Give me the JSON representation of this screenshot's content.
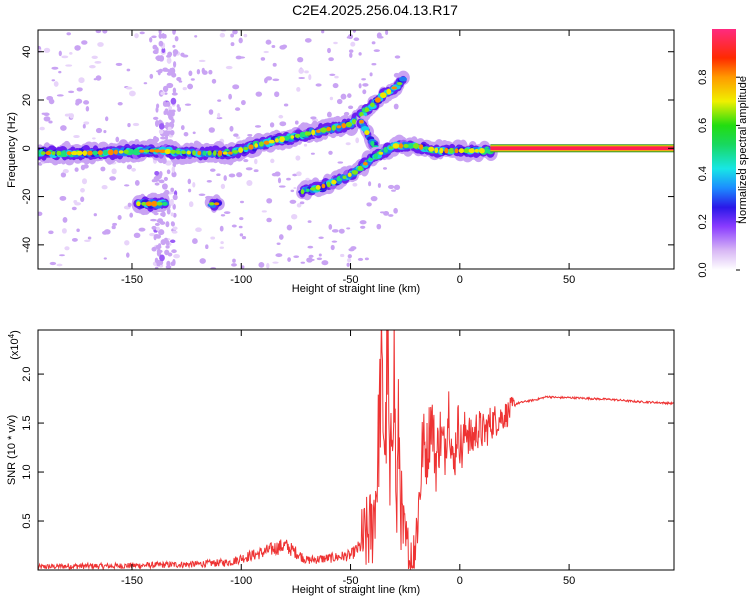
{
  "title": "C2E4.2025.256.04.13.R17",
  "chart_data": [
    {
      "type": "heatmap",
      "xlabel": "Height of straight line (km)",
      "ylabel": "Frequency (Hz)",
      "xlim": [
        -193,
        98
      ],
      "ylim": [
        -50,
        49
      ],
      "xticks": [
        -150,
        -100,
        -50,
        0,
        50
      ],
      "yticks": [
        -40,
        -20,
        0,
        20,
        40
      ],
      "colorbar": {
        "label": "Normalized spectral amplitude",
        "range": [
          0,
          1
        ],
        "ticks": [
          "0.0",
          "0.2",
          "0.4",
          "0.6",
          "0.8"
        ]
      },
      "features": {
        "main_band": [
          [
            -193,
            -2
          ],
          [
            -170,
            -2
          ],
          [
            -140,
            -1
          ],
          [
            -120,
            -2
          ],
          [
            -105,
            -2
          ],
          [
            -90,
            2
          ],
          [
            -75,
            5
          ],
          [
            -60,
            8
          ],
          [
            -50,
            10
          ],
          [
            -45,
            13
          ]
        ],
        "upper_branch": [
          [
            -45,
            14
          ],
          [
            -40,
            18
          ],
          [
            -35,
            22
          ],
          [
            -30,
            25
          ],
          [
            -26,
            28
          ]
        ],
        "descending_branch": [
          [
            -45,
            11
          ],
          [
            -40,
            2
          ],
          [
            -37,
            -2
          ]
        ],
        "lower_branch": [
          [
            -72,
            -18
          ],
          [
            -60,
            -15
          ],
          [
            -48,
            -10
          ],
          [
            -40,
            -4
          ],
          [
            -30,
            1
          ],
          [
            -20,
            1
          ],
          [
            -10,
            -1
          ],
          [
            0,
            -1
          ],
          [
            14,
            -1
          ]
        ],
        "isolated_patch": {
          "x": [
            -147,
            -135
          ],
          "y": -23
        },
        "small_patch": {
          "x": -112,
          "y": -23
        },
        "flat_line": {
          "x": [
            14,
            98
          ],
          "y": 0
        }
      }
    },
    {
      "type": "line",
      "xlabel": "Height of straight line (km)",
      "ylabel": "SNR (10 * v/v)",
      "multiplier": "(x10",
      "multiplier_exp": "4",
      "multiplier_close": ")",
      "xlim": [
        -193,
        98
      ],
      "ylim": [
        0,
        2.45
      ],
      "xticks": [
        -150,
        -100,
        -50,
        0,
        50
      ],
      "yticks": [
        0.5,
        1.0,
        1.5,
        2.0
      ],
      "ytick_labels": [
        "0.5",
        "1.0",
        "1.5",
        "2.0"
      ],
      "color": "#ee3333",
      "series": [
        {
          "x": [
            -193,
            -180,
            -160,
            -140,
            -120,
            -105,
            -100,
            -95,
            -90,
            -85,
            -80,
            -75,
            -70,
            -60,
            -50,
            -45,
            -40,
            -38,
            -36,
            -34,
            -33,
            -32,
            -31,
            -30,
            -29,
            -28,
            -27,
            -26,
            -25,
            -24,
            -22,
            -20,
            -18,
            -17,
            -15,
            -13,
            -11,
            -9,
            -7,
            -5,
            -3,
            -1,
            1,
            3,
            5,
            8,
            11,
            14,
            18,
            22,
            26,
            30,
            35,
            40,
            45,
            50,
            60,
            70,
            80,
            90,
            98
          ],
          "y": [
            0.03,
            0.04,
            0.04,
            0.05,
            0.06,
            0.08,
            0.12,
            0.15,
            0.18,
            0.22,
            0.25,
            0.18,
            0.1,
            0.12,
            0.15,
            0.25,
            0.45,
            0.9,
            2.0,
            1.2,
            2.45,
            0.6,
            1.7,
            2.15,
            0.4,
            1.5,
            0.7,
            0.35,
            0.25,
            0.15,
            0.05,
            0.35,
            0.9,
            1.3,
            1.2,
            1.6,
            1.1,
            1.4,
            1.2,
            1.7,
            1.0,
            1.5,
            1.2,
            1.5,
            1.3,
            1.45,
            1.4,
            1.5,
            1.55,
            1.6,
            1.7,
            1.72,
            1.74,
            1.77,
            1.76,
            1.76,
            1.75,
            1.74,
            1.72,
            1.71,
            1.7
          ]
        }
      ]
    }
  ]
}
